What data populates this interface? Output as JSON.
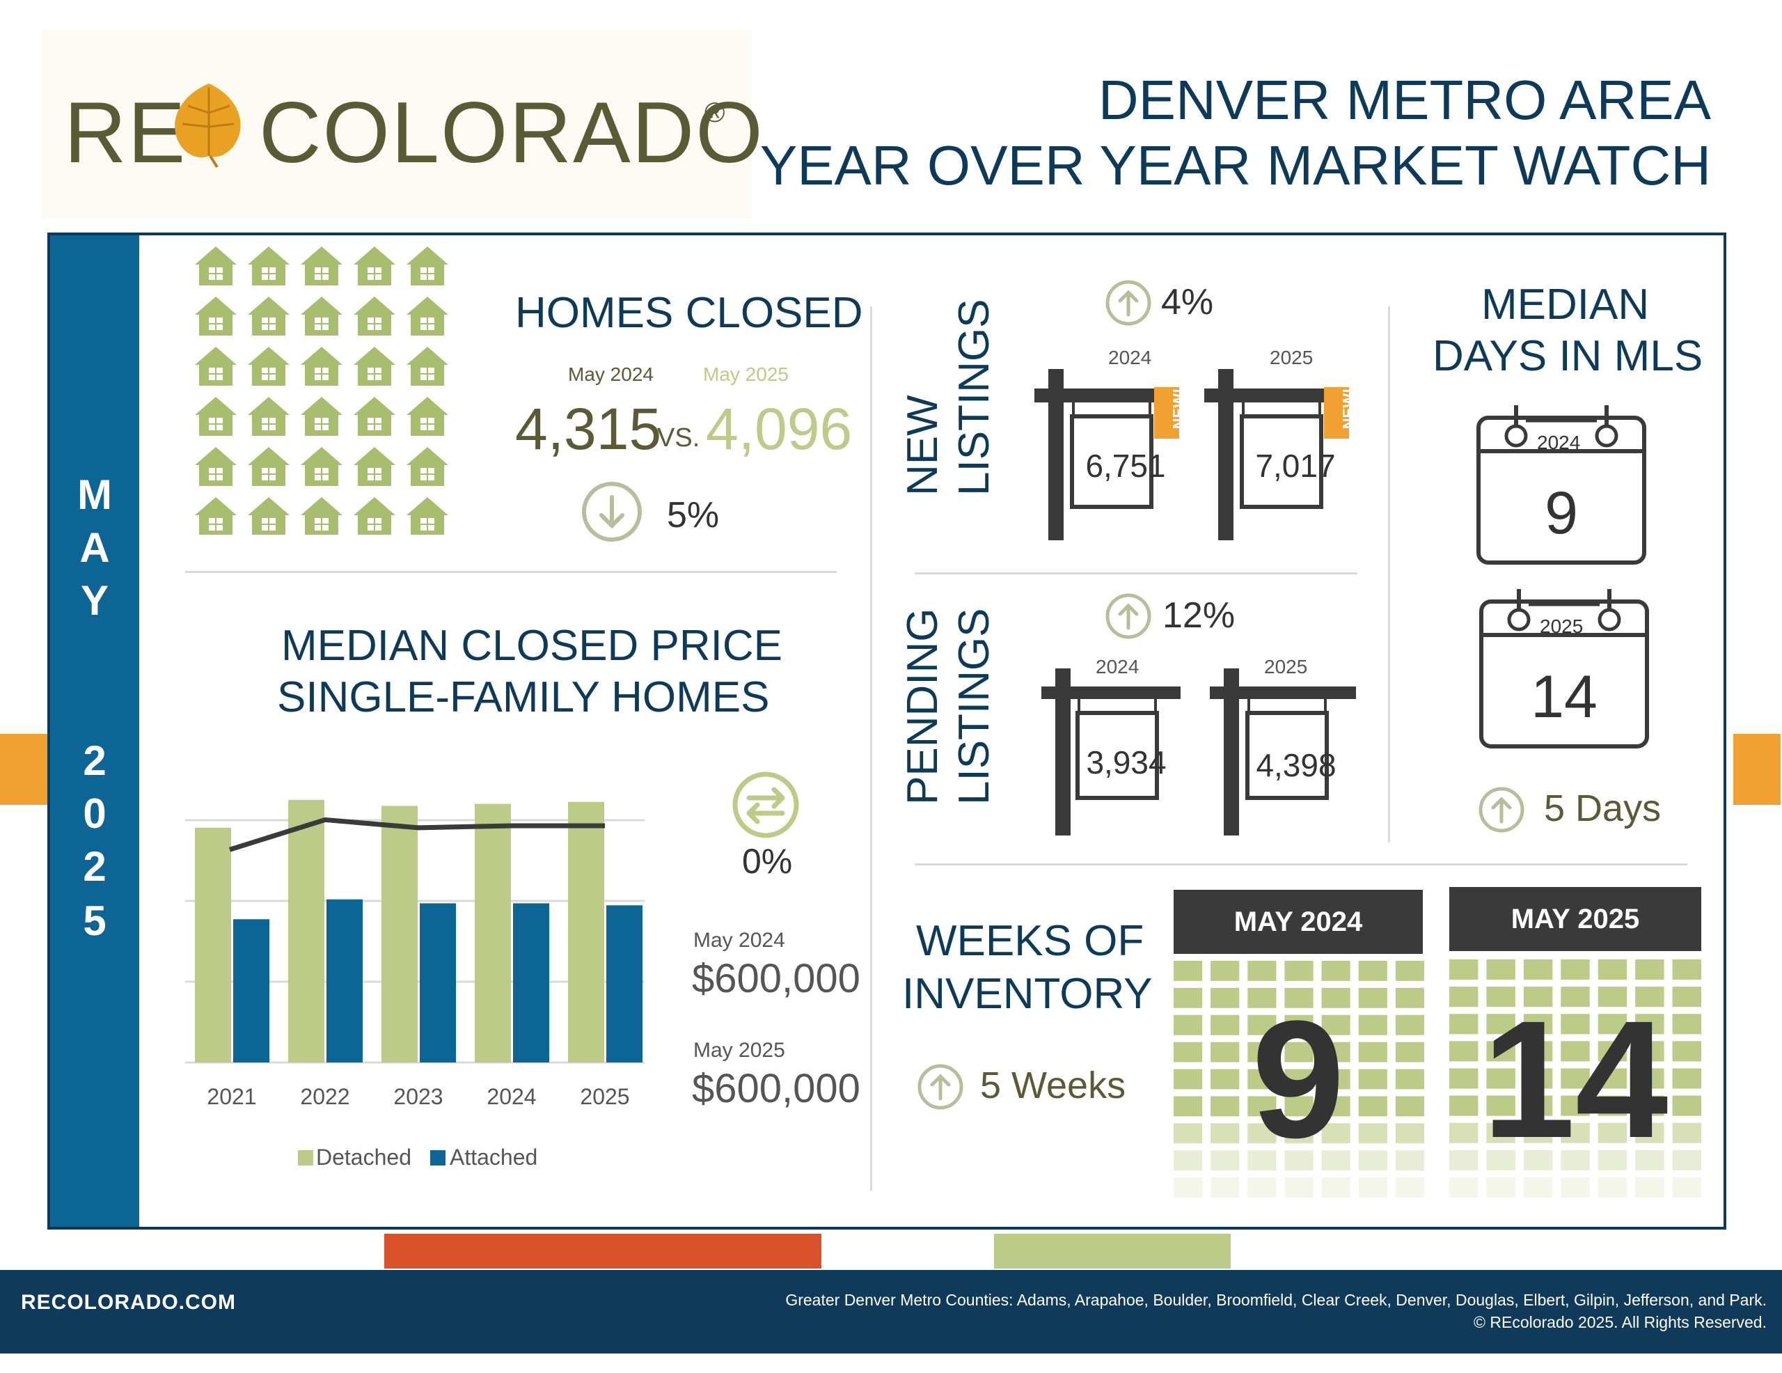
{
  "logo": {
    "left": "RE",
    "right": "COLORADO",
    "mark": "®"
  },
  "title": {
    "line1": "DENVER METRO AREA",
    "line2": "YEAR OVER YEAR MARKET WATCH"
  },
  "side": {
    "month": [
      "M",
      "A",
      "Y"
    ],
    "year": [
      "2",
      "0",
      "2",
      "5"
    ]
  },
  "homes_closed": {
    "heading": "HOMES CLOSED",
    "label_2024": "May 2024",
    "label_2025": "May 2025",
    "value_2024": "4,315",
    "vs": "VS.",
    "value_2025": "4,096",
    "change": "5%",
    "direction": "down"
  },
  "median_price": {
    "heading_1": "MEDIAN CLOSED PRICE",
    "heading_2": "SINGLE-FAMILY HOMES",
    "change": "0%",
    "label_2024": "May 2024",
    "value_2024": "$600,000",
    "label_2025": "May 2025",
    "value_2025": "$600,000",
    "legend_detached": "Detached",
    "legend_attached": "Attached"
  },
  "chart_data": {
    "type": "bar",
    "categories": [
      "2021",
      "2022",
      "2023",
      "2024",
      "2025"
    ],
    "series": [
      {
        "name": "Detached",
        "values": [
          590000,
          660000,
          645000,
          650000,
          655000
        ],
        "color": "#bccb87"
      },
      {
        "name": "Attached",
        "values": [
          360000,
          410000,
          400000,
          400000,
          395000
        ],
        "color": "#0d6596"
      }
    ],
    "line": [
      535000,
      610000,
      590000,
      595000,
      595000
    ],
    "line_color": "#3a3a3a",
    "ylim": [
      0,
      700000
    ],
    "grid": true,
    "legend": "bottom"
  },
  "new_listings": {
    "heading_1": "NEW",
    "heading_2": "LISTINGS",
    "change": "4%",
    "direction": "up",
    "year_2024": "2024",
    "year_2025": "2025",
    "value_2024": "6,751",
    "value_2025": "7,017",
    "badge": "NEW!"
  },
  "pending_listings": {
    "heading_1": "PENDING",
    "heading_2": "LISTINGS",
    "change": "12%",
    "direction": "up",
    "year_2024": "2024",
    "year_2025": "2025",
    "value_2024": "3,934",
    "value_2025": "4,398"
  },
  "days_in_mls": {
    "heading_1": "MEDIAN",
    "heading_2": "DAYS IN MLS",
    "year_2024": "2024",
    "value_2024": "9",
    "year_2025": "2025",
    "value_2025": "14",
    "change": "5 Days",
    "direction": "up"
  },
  "weeks_inventory": {
    "heading_1": "WEEKS OF",
    "heading_2": "INVENTORY",
    "change": "5 Weeks",
    "direction": "up",
    "head_2024": "MAY 2024",
    "value_2024": "9",
    "head_2025": "MAY 2025",
    "value_2025": "14"
  },
  "footer": {
    "site": "RECOLORADO.COM",
    "counties": "Greater Denver Metro Counties: Adams, Arapahoe, Boulder, Broomfield, Clear Creek, Denver, Douglas, Elbert, Gilpin, Jefferson, and Park.",
    "copyright": "© REcolorado 2025. All Rights Reserved."
  },
  "colors": {
    "navy": "#0e3a5a",
    "blue": "#0d6596",
    "green": "#bccb87",
    "olive": "#5b5a37",
    "orange": "#f1a131"
  }
}
